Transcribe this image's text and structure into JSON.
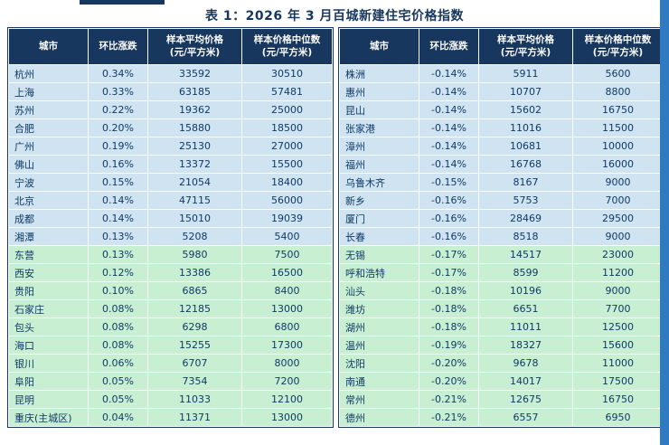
{
  "colors": {
    "navy": "#17375e",
    "row_blue": "#cfe3f1",
    "row_green": "#c9efd2",
    "strip_blue": "#2f7ac0",
    "text": "#0f3a66"
  },
  "chart_data": {
    "type": "table",
    "title": "表 1：2026 年 3 月百城新建住宅价格指数",
    "columns": [
      {
        "label": "城市"
      },
      {
        "label": "环比涨跌"
      },
      {
        "label": "样本平均价格",
        "sub": "(元/平方米)"
      },
      {
        "label": "样本价格中位数",
        "sub": "(元/平方米)"
      }
    ],
    "tables": [
      {
        "rows": [
          {
            "city": "杭州",
            "change": "0.34%",
            "avg": "33592",
            "median": "30510",
            "group": "blue"
          },
          {
            "city": "上海",
            "change": "0.33%",
            "avg": "63185",
            "median": "57481",
            "group": "blue"
          },
          {
            "city": "苏州",
            "change": "0.22%",
            "avg": "19362",
            "median": "25000",
            "group": "blue"
          },
          {
            "city": "合肥",
            "change": "0.20%",
            "avg": "15880",
            "median": "18500",
            "group": "blue"
          },
          {
            "city": "广州",
            "change": "0.19%",
            "avg": "25130",
            "median": "27000",
            "group": "blue"
          },
          {
            "city": "佛山",
            "change": "0.16%",
            "avg": "13372",
            "median": "15500",
            "group": "blue"
          },
          {
            "city": "宁波",
            "change": "0.15%",
            "avg": "21054",
            "median": "18400",
            "group": "blue"
          },
          {
            "city": "北京",
            "change": "0.14%",
            "avg": "47115",
            "median": "56000",
            "group": "blue"
          },
          {
            "city": "成都",
            "change": "0.14%",
            "avg": "15010",
            "median": "19039",
            "group": "blue"
          },
          {
            "city": "湘潭",
            "change": "0.13%",
            "avg": "5208",
            "median": "5400",
            "group": "blue"
          },
          {
            "city": "东营",
            "change": "0.13%",
            "avg": "5980",
            "median": "7500",
            "group": "green"
          },
          {
            "city": "西安",
            "change": "0.12%",
            "avg": "13386",
            "median": "16500",
            "group": "green"
          },
          {
            "city": "贵阳",
            "change": "0.10%",
            "avg": "6865",
            "median": "8400",
            "group": "green"
          },
          {
            "city": "石家庄",
            "change": "0.08%",
            "avg": "12185",
            "median": "13000",
            "group": "green"
          },
          {
            "city": "包头",
            "change": "0.08%",
            "avg": "6298",
            "median": "6800",
            "group": "green"
          },
          {
            "city": "海口",
            "change": "0.08%",
            "avg": "15255",
            "median": "17300",
            "group": "green"
          },
          {
            "city": "银川",
            "change": "0.06%",
            "avg": "6707",
            "median": "8000",
            "group": "green"
          },
          {
            "city": "阜阳",
            "change": "0.05%",
            "avg": "7354",
            "median": "7200",
            "group": "green"
          },
          {
            "city": "昆明",
            "change": "0.05%",
            "avg": "11033",
            "median": "12100",
            "group": "green"
          },
          {
            "city": "重庆(主城区)",
            "change": "0.04%",
            "avg": "11371",
            "median": "13000",
            "group": "green"
          }
        ]
      },
      {
        "rows": [
          {
            "city": "株洲",
            "change": "-0.14%",
            "avg": "5911",
            "median": "5600",
            "group": "blue"
          },
          {
            "city": "惠州",
            "change": "-0.14%",
            "avg": "10707",
            "median": "8800",
            "group": "blue"
          },
          {
            "city": "昆山",
            "change": "-0.14%",
            "avg": "15602",
            "median": "16750",
            "group": "blue"
          },
          {
            "city": "张家港",
            "change": "-0.14%",
            "avg": "11016",
            "median": "11500",
            "group": "blue"
          },
          {
            "city": "漳州",
            "change": "-0.14%",
            "avg": "10681",
            "median": "10000",
            "group": "blue"
          },
          {
            "city": "福州",
            "change": "-0.14%",
            "avg": "16768",
            "median": "16000",
            "group": "blue"
          },
          {
            "city": "乌鲁木齐",
            "change": "-0.15%",
            "avg": "8167",
            "median": "9000",
            "group": "blue"
          },
          {
            "city": "新乡",
            "change": "-0.16%",
            "avg": "5753",
            "median": "7000",
            "group": "blue"
          },
          {
            "city": "厦门",
            "change": "-0.16%",
            "avg": "28469",
            "median": "29500",
            "group": "blue"
          },
          {
            "city": "长春",
            "change": "-0.16%",
            "avg": "8518",
            "median": "9000",
            "group": "blue"
          },
          {
            "city": "无锡",
            "change": "-0.17%",
            "avg": "14517",
            "median": "23000",
            "group": "green"
          },
          {
            "city": "呼和浩特",
            "change": "-0.17%",
            "avg": "8599",
            "median": "11200",
            "group": "green"
          },
          {
            "city": "汕头",
            "change": "-0.18%",
            "avg": "10196",
            "median": "9000",
            "group": "green"
          },
          {
            "city": "潍坊",
            "change": "-0.18%",
            "avg": "6651",
            "median": "7700",
            "group": "green"
          },
          {
            "city": "湖州",
            "change": "-0.18%",
            "avg": "11011",
            "median": "12500",
            "group": "green"
          },
          {
            "city": "温州",
            "change": "-0.19%",
            "avg": "18327",
            "median": "15600",
            "group": "green"
          },
          {
            "city": "沈阳",
            "change": "-0.20%",
            "avg": "9678",
            "median": "11000",
            "group": "green"
          },
          {
            "city": "南通",
            "change": "-0.20%",
            "avg": "14017",
            "median": "17500",
            "group": "green"
          },
          {
            "city": "常州",
            "change": "-0.21%",
            "avg": "12675",
            "median": "16750",
            "group": "green"
          },
          {
            "city": "德州",
            "change": "-0.21%",
            "avg": "6557",
            "median": "6950",
            "group": "green"
          }
        ]
      }
    ]
  }
}
